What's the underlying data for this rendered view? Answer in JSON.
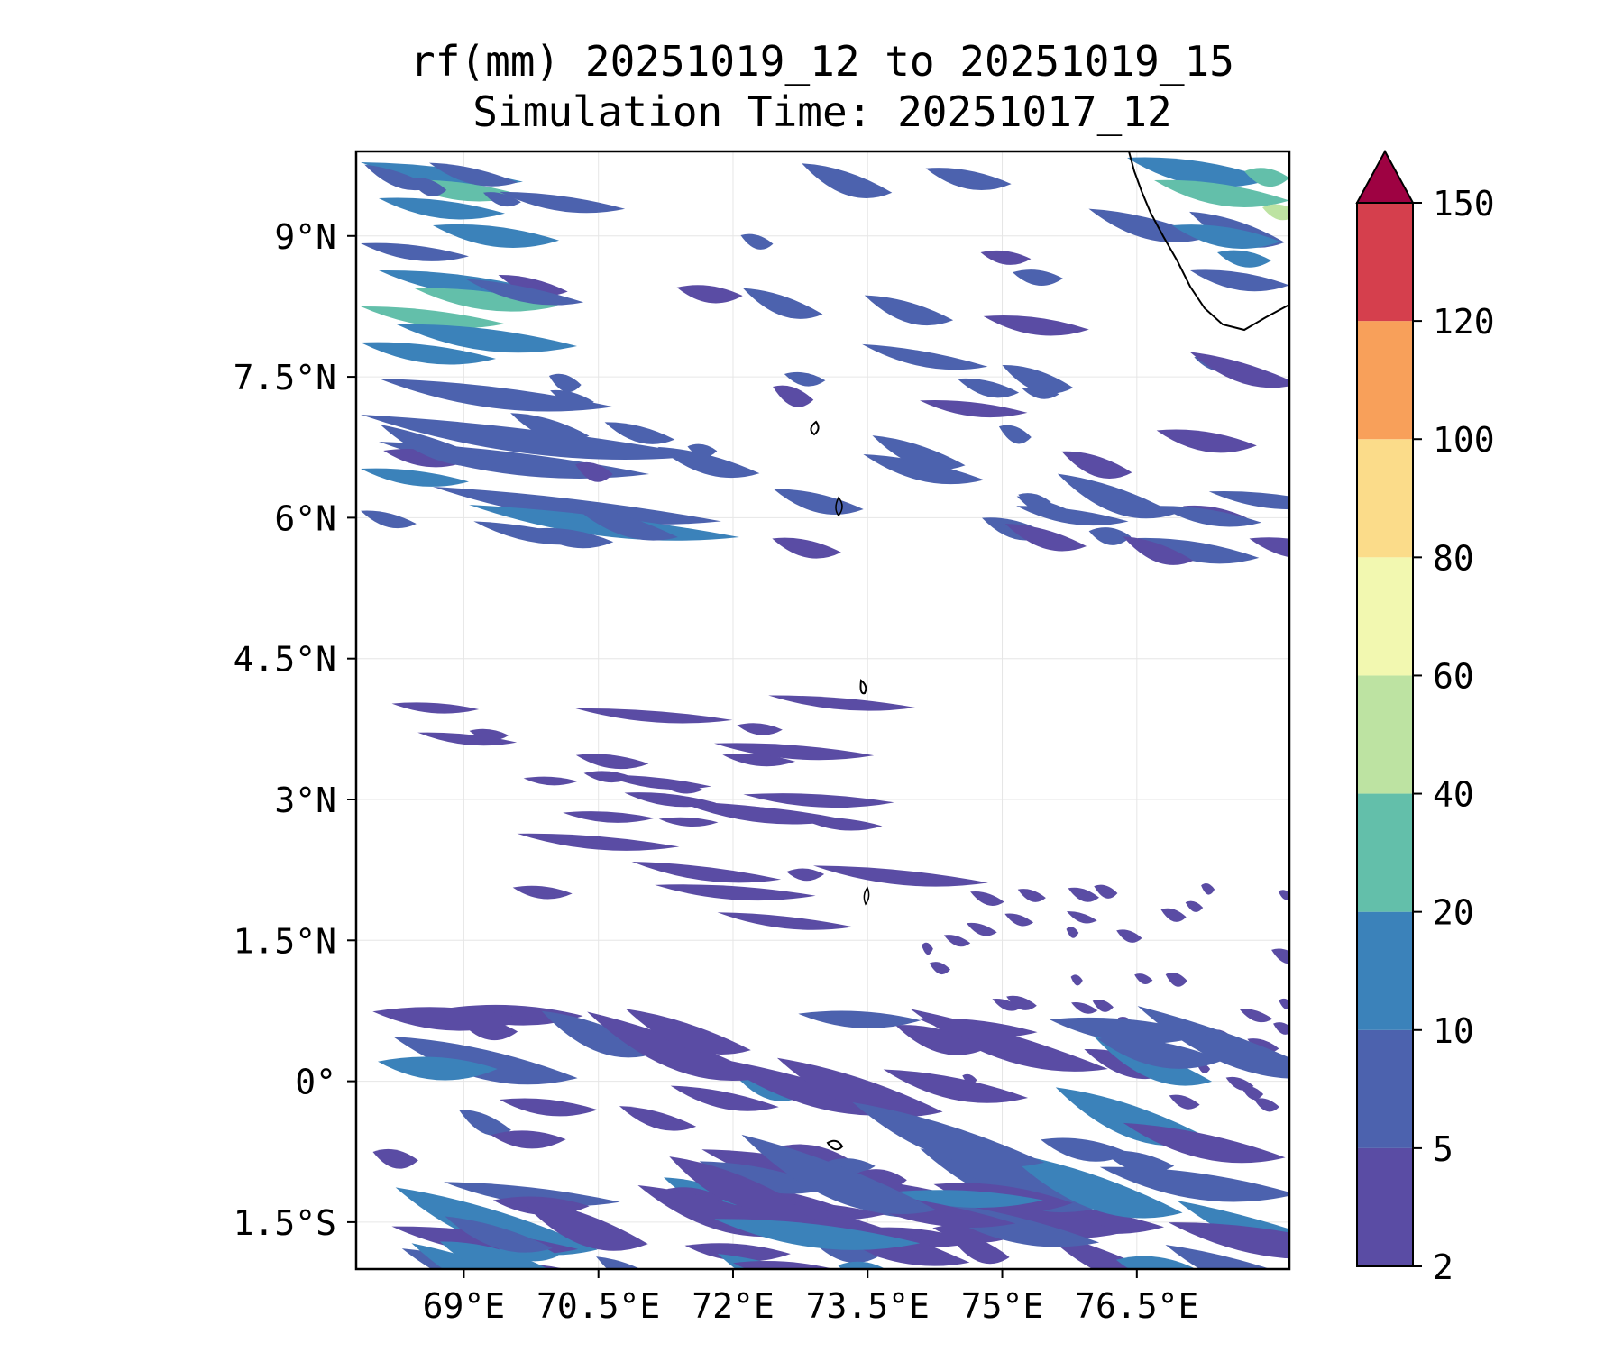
{
  "title": {
    "line1": "rf(mm) 20251019_12 to 20251019_15",
    "line2": "Simulation Time: 20251017_12"
  },
  "map": {
    "lon_range": [
      67.8,
      78.2
    ],
    "lat_range": [
      -2.0,
      9.9
    ],
    "x_ticks": [
      {
        "value": 69.0,
        "label": "69°E"
      },
      {
        "value": 70.5,
        "label": "70.5°E"
      },
      {
        "value": 72.0,
        "label": "72°E"
      },
      {
        "value": 73.5,
        "label": "73.5°E"
      },
      {
        "value": 75.0,
        "label": "75°E"
      },
      {
        "value": 76.5,
        "label": "76.5°E"
      }
    ],
    "y_ticks": [
      {
        "value": 9.0,
        "label": "9°N"
      },
      {
        "value": 7.5,
        "label": "7.5°N"
      },
      {
        "value": 6.0,
        "label": "6°N"
      },
      {
        "value": 4.5,
        "label": "4.5°N"
      },
      {
        "value": 3.0,
        "label": "3°N"
      },
      {
        "value": 1.5,
        "label": "1.5°N"
      },
      {
        "value": 0.0,
        "label": "0°"
      },
      {
        "value": -1.5,
        "label": "1.5°S"
      }
    ]
  },
  "colorbar": {
    "levels": [
      2,
      5,
      10,
      20,
      40,
      60,
      80,
      100,
      120,
      150
    ],
    "colors": [
      "#5a4ca4",
      "#4c62ae",
      "#3b82ba",
      "#63bfaa",
      "#bde3a2",
      "#f2f8b0",
      "#fbdc8a",
      "#f8a05a",
      "#d53f4d"
    ],
    "extend_color": "#9e0242",
    "extend": "max"
  },
  "colors": {
    "land_outline": "#000000",
    "grid": "#e6e6e6"
  }
}
